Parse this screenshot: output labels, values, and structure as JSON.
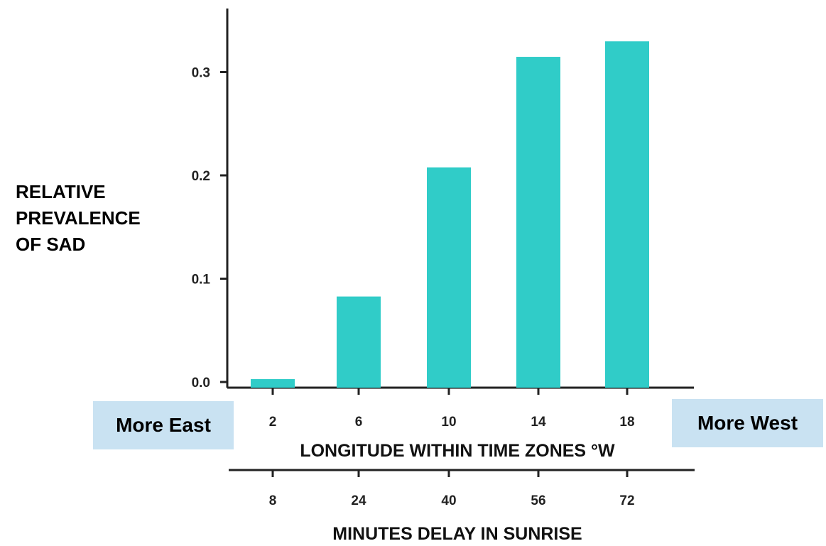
{
  "chart_data": {
    "type": "bar",
    "categories": [
      "2",
      "6",
      "10",
      "14",
      "18"
    ],
    "values": [
      0.0,
      0.08,
      0.205,
      0.312,
      0.327
    ],
    "ylabel_lines": [
      "RELATIVE",
      "PREVALENCE",
      "OF SAD"
    ],
    "xlabel": "LONGITUDE WITHIN TIME ZONES °W",
    "secondary_x_categories": [
      "8",
      "24",
      "40",
      "56",
      "72"
    ],
    "secondary_xlabel": "MINUTES DELAY IN SUNRISE",
    "yticks": [
      "0.0",
      "0.1",
      "0.2",
      "0.3"
    ],
    "ylim": [
      0,
      0.35
    ],
    "grid": false,
    "bar_color": "#30ccc8",
    "annotations": {
      "left": "More East",
      "right": "More West"
    }
  },
  "colors": {
    "bar": "#30ccc8",
    "callout_bg": "#c9e2f2",
    "axis": "#222222"
  }
}
